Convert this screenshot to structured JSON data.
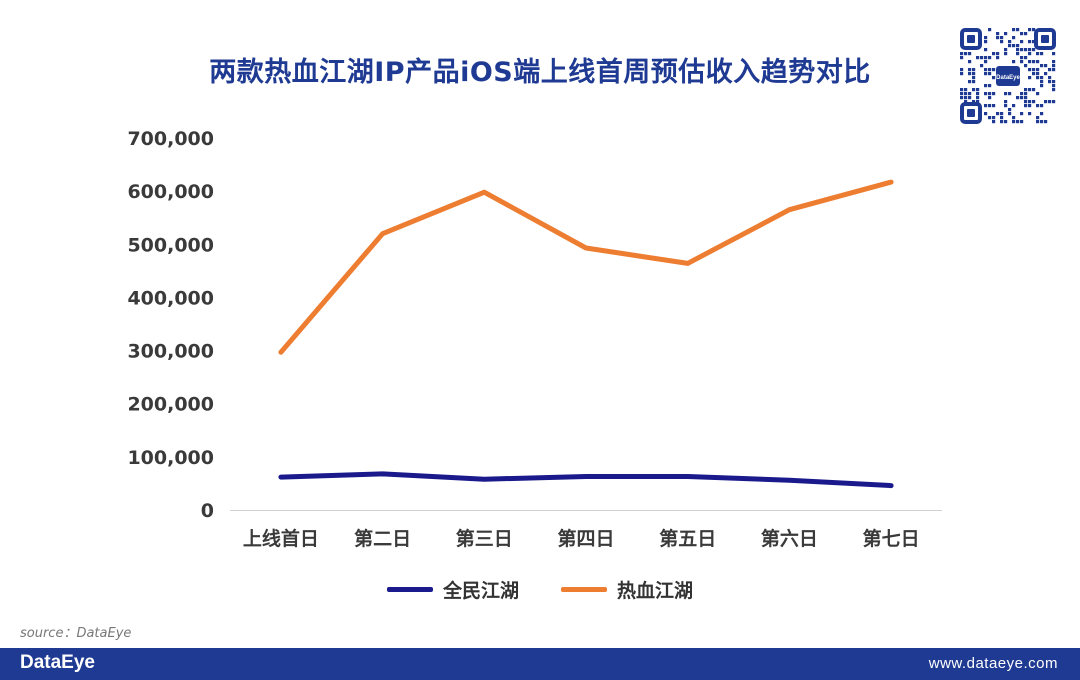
{
  "header": {
    "title": "两款热血江湖IP产品iOS端上线首周预估收入趋势对比"
  },
  "qr_code": {
    "center_text": "DataEye"
  },
  "chart_data": {
    "type": "line",
    "title": "两款热血江湖IP产品iOS端上线首周预估收入趋势对比",
    "xlabel": "",
    "ylabel": "",
    "categories": [
      "上线首日",
      "第二日",
      "第三日",
      "第四日",
      "第五日",
      "第六日",
      "第七日"
    ],
    "ylim": [
      0,
      700000
    ],
    "yticks": [
      "0",
      "100,000",
      "200,000",
      "300,000",
      "400,000",
      "500,000",
      "600,000",
      "700,000"
    ],
    "grid": false,
    "legend_position": "bottom",
    "series": [
      {
        "name": "全民江湖",
        "color": "#1A1A8C",
        "values": [
          62000,
          68000,
          58000,
          63000,
          63000,
          56000,
          46000
        ]
      },
      {
        "name": "热血江湖",
        "color": "#ED7D31",
        "values": [
          297000,
          520000,
          598000,
          493000,
          464000,
          565000,
          617000
        ]
      }
    ]
  },
  "source": {
    "text": "source：DataEye"
  },
  "footer": {
    "logo": "DataEye",
    "url": "www.dataeye.com"
  }
}
